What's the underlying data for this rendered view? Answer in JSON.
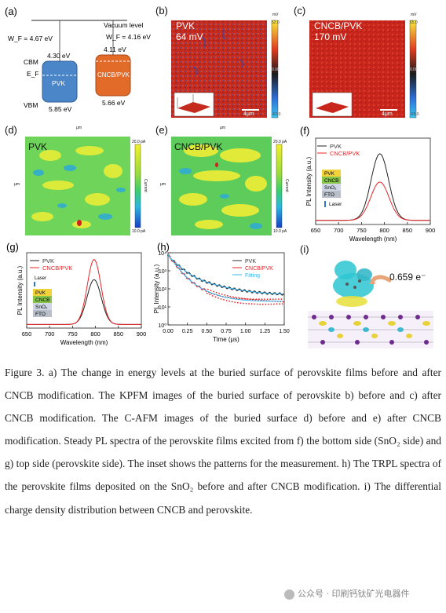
{
  "panels": {
    "a": {
      "label": "(a)",
      "vacuum": "Vacuum level",
      "wf_pvk": "W_F = 4.67 eV",
      "wf_cncb": "W_F = 4.16 eV",
      "cbm": "CBM",
      "ef": "E_F",
      "vbm": "VBM",
      "pvk_cbm": "4.30 eV",
      "pvk_vbm": "5.85 eV",
      "pvk_name": "PVK",
      "cncb_cbm": "4.11 eV",
      "cncb_vbm": "5.66 eV",
      "cncb_name": "CNCB/PVK"
    },
    "b": {
      "label": "(b)",
      "title": "PVK",
      "value": "64 mV",
      "cbar_top": "52.0",
      "cbar_mid": "0.00",
      "cbar_bot": "-52.0",
      "cbar_unit": "mV",
      "scale": "4μm"
    },
    "c": {
      "label": "(c)",
      "title": "CNCB/PVK",
      "value": "170 mV",
      "cbar_top": "65.0",
      "cbar_mid": "0.00",
      "cbar_bot": "-65.0",
      "cbar_unit": "mV",
      "scale": "4μm"
    },
    "d": {
      "label": "(d)",
      "title": "PVK",
      "cbar_top": "20.0 pA",
      "cbar_bot": "10.0 pA",
      "cbar_unit": "Current",
      "xunit": "μm",
      "yunit": "μm"
    },
    "e": {
      "label": "(e)",
      "title": "CNCB/PVK",
      "cbar_top": "20.0 pA",
      "cbar_bot": "10.0 pA",
      "cbar_unit": "Current",
      "xunit": "μm",
      "yunit": "μm"
    },
    "i": {
      "label": "(i)",
      "annotation": "0.659 e⁻"
    }
  },
  "inset_layers": [
    "PVK",
    "CNCB",
    "SnO₂",
    "FTO"
  ],
  "inset_laser": "Laser",
  "chart_data": [
    {
      "id": "f",
      "label": "(f)",
      "type": "line",
      "xlabel": "Wavelength (nm)",
      "ylabel": "PL Intensity (a.u.)",
      "xlim": [
        650,
        900
      ],
      "xticks": [
        650,
        700,
        750,
        800,
        850,
        900
      ],
      "series": [
        {
          "name": "PVK",
          "color": "#222222",
          "peak_x": 790,
          "peak_y": 0.8,
          "width": 27
        },
        {
          "name": "CNCB/PVK",
          "color": "#e8262a",
          "peak_x": 790,
          "peak_y": 0.46,
          "width": 28
        }
      ]
    },
    {
      "id": "g",
      "label": "(g)",
      "type": "line",
      "xlabel": "Wavelength (nm)",
      "ylabel": "PL Intensity (a.u.)",
      "xlim": [
        650,
        900
      ],
      "xticks": [
        650,
        700,
        750,
        800,
        850,
        900
      ],
      "series": [
        {
          "name": "PVK",
          "color": "#222222",
          "peak_x": 797,
          "peak_y": 0.62,
          "width": 22
        },
        {
          "name": "CNCB/PVK",
          "color": "#e8262a",
          "peak_x": 797,
          "peak_y": 0.9,
          "width": 21
        }
      ]
    },
    {
      "id": "h",
      "label": "(h)",
      "type": "scatter",
      "xlabel": "Time (μs)",
      "ylabel": "PL Intensity (a.u.)",
      "xlim": [
        0,
        1.5
      ],
      "ylim_log": [
        1,
        10000
      ],
      "xticks": [
        0.0,
        0.25,
        0.5,
        0.75,
        1.0,
        1.25,
        1.5
      ],
      "yticks": [
        "10⁰",
        "10¹",
        "10²",
        "10³",
        "10⁴"
      ],
      "series": [
        {
          "name": "PVK",
          "color": "#333333",
          "a1": 6000,
          "t1": 0.09,
          "a2": 900,
          "t2": 0.3,
          "floor": 45
        },
        {
          "name": "CNCB/PVK",
          "color": "#e8262a",
          "a1": 7000,
          "t1": 0.07,
          "a2": 700,
          "t2": 0.19,
          "floor": 20
        },
        {
          "name": "Fitting",
          "color": "#31b4f0"
        }
      ]
    }
  ],
  "caption": "Figure 3. a) The change in energy levels at the buried surface of perovskite films before and after CNCB modification. The KPFM images of the buried surface of perovskite b) before and c) after CNCB modification. The C-AFM images of the buried surface d) before and e) after CNCB modification. Steady PL spectra of the perovskite films excited from f) the bottom side (SnO₂ side) and g) top side (perovskite side). The inset shows the patterns for the measurement. h) The TRPL spectra of the perovskite films deposited on the SnO₂ before and after CNCB modification. i) The differential charge density distribution between CNCB and perovskite.",
  "watermark": "公众号 · 印刷钙钛矿光电器件",
  "colors": {
    "pvk_box": "#4a86c8",
    "cncb_box": "#e26b2a",
    "kpfm_bg": "#c8281f"
  }
}
